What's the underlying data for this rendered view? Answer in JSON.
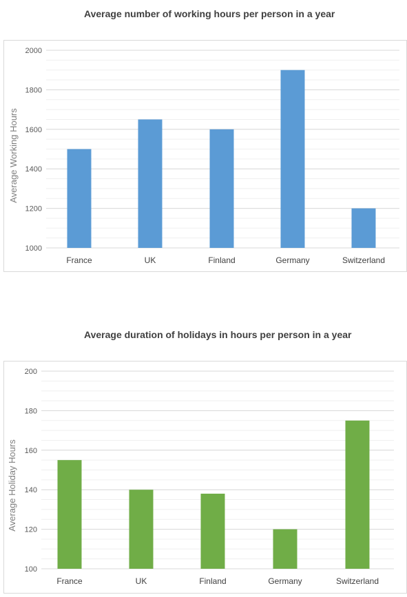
{
  "chart_data": [
    {
      "type": "bar",
      "title": "Average number of working hours per person in a year",
      "ylabel": "Average Working Hours",
      "xlabel": "",
      "categories": [
        "France",
        "UK",
        "Finland",
        "Germany",
        "Switzerland"
      ],
      "values": [
        1500,
        1650,
        1600,
        1900,
        1200
      ],
      "ylim": [
        1000,
        2000
      ],
      "yticks": [
        "1000",
        "1200",
        "1400",
        "1600",
        "1800",
        "2000"
      ],
      "minor_step": 50,
      "color": "#5b9bd5",
      "grid": true
    },
    {
      "type": "bar",
      "title": "Average duration of holidays in hours per person in a year",
      "ylabel": "Average Holiday Hours",
      "xlabel": "",
      "categories": [
        "France",
        "UK",
        "Finland",
        "Germany",
        "Switzerland"
      ],
      "values": [
        155,
        140,
        138,
        120,
        175
      ],
      "ylim": [
        100,
        200
      ],
      "yticks": [
        "100",
        "120",
        "140",
        "160",
        "180",
        "200"
      ],
      "minor_step": 5,
      "color": "#70ad47",
      "grid": true
    }
  ]
}
